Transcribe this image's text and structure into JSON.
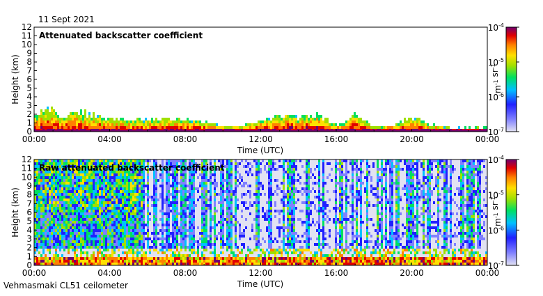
{
  "date": "11 Sept 2021",
  "instrument": "Vehmasmaki CL51 ceilometer",
  "chart_data": [
    {
      "type": "heatmap",
      "title": "Attenuated backscatter coefficient",
      "xlabel": "Time (UTC)",
      "ylabel": "Height (km)",
      "x_ticks": [
        "00:00",
        "04:00",
        "08:00",
        "12:00",
        "16:00",
        "20:00",
        "00:00"
      ],
      "y_ticks": [
        "0",
        "1",
        "2",
        "3",
        "4",
        "5",
        "6",
        "7",
        "8",
        "9",
        "10",
        "11",
        "12"
      ],
      "xlim": [
        "00:00",
        "24:00"
      ],
      "ylim": [
        0,
        12
      ],
      "colorbar": {
        "unit": "m-1 sr-1",
        "scale": "log",
        "range": [
          1e-07,
          0.0001
        ],
        "tick_labels": [
          "10-4",
          "10-5",
          "10-6",
          "10-7"
        ]
      },
      "layer_top_km": [
        {
          "x": 0.0,
          "y": 1.6
        },
        {
          "x": 0.5,
          "y": 2.4
        },
        {
          "x": 1.0,
          "y": 2.2
        },
        {
          "x": 1.5,
          "y": 1.5
        },
        {
          "x": 2.0,
          "y": 1.9
        },
        {
          "x": 2.5,
          "y": 2.2
        },
        {
          "x": 3.0,
          "y": 1.7
        },
        {
          "x": 4.0,
          "y": 1.4
        },
        {
          "x": 5.0,
          "y": 1.2
        },
        {
          "x": 6.0,
          "y": 1.3
        },
        {
          "x": 7.0,
          "y": 1.3
        },
        {
          "x": 8.0,
          "y": 1.2
        },
        {
          "x": 9.0,
          "y": 0.9
        },
        {
          "x": 10.0,
          "y": 0.4
        },
        {
          "x": 11.0,
          "y": 0.5
        },
        {
          "x": 12.0,
          "y": 1.2
        },
        {
          "x": 13.0,
          "y": 1.6
        },
        {
          "x": 14.0,
          "y": 1.5
        },
        {
          "x": 15.0,
          "y": 1.8
        },
        {
          "x": 16.0,
          "y": 0.5
        },
        {
          "x": 17.0,
          "y": 1.8
        },
        {
          "x": 18.0,
          "y": 0.4
        },
        {
          "x": 19.0,
          "y": 0.6
        },
        {
          "x": 20.0,
          "y": 1.5
        },
        {
          "x": 21.0,
          "y": 0.6
        },
        {
          "x": 22.0,
          "y": 0.3
        },
        {
          "x": 23.0,
          "y": 0.3
        },
        {
          "x": 24.0,
          "y": 0.3
        }
      ]
    },
    {
      "type": "heatmap",
      "title": "Raw attenuated backscatter coefficient",
      "xlabel": "Time (UTC)",
      "ylabel": "Height (km)",
      "x_ticks": [
        "00:00",
        "04:00",
        "08:00",
        "12:00",
        "16:00",
        "20:00",
        "00:00"
      ],
      "y_ticks": [
        "0",
        "1",
        "2",
        "3",
        "4",
        "5",
        "6",
        "7",
        "8",
        "9",
        "10",
        "11",
        "12"
      ],
      "xlim": [
        "00:00",
        "24:00"
      ],
      "ylim": [
        0,
        12
      ],
      "colorbar": {
        "unit": "m-1 sr-1",
        "scale": "log",
        "range": [
          1e-07,
          0.0001
        ],
        "tick_labels": [
          "10-4",
          "10-5",
          "10-6",
          "10-7"
        ]
      },
      "noise_regions": [
        {
          "from": "00:00",
          "to": "05:45",
          "level": "high"
        },
        {
          "from": "05:45",
          "to": "24:00",
          "level": "mixed"
        }
      ]
    }
  ]
}
